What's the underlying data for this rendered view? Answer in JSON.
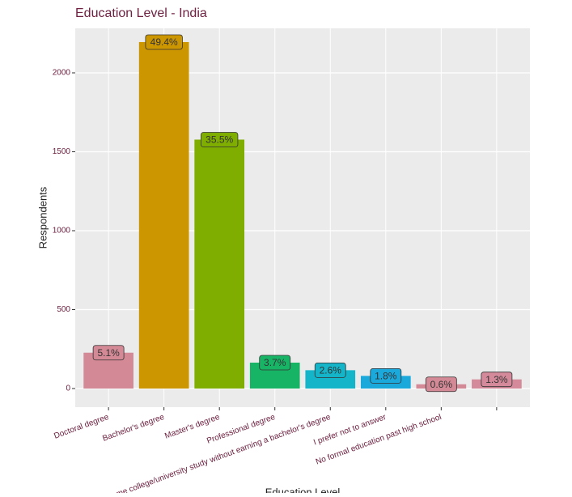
{
  "chart_data": {
    "type": "bar",
    "title": "Education Level - India",
    "x_label": "Education Level",
    "y_label": "Respondents",
    "categories": [
      "Doctoral degree",
      "Bachelor's degree",
      "Master's degree",
      "Professional degree",
      "Some college/university study without earning a bachelor's degree",
      "I prefer not to answer",
      "No formal education past high school",
      null
    ],
    "values": [
      227,
      2195,
      1577,
      164,
      116,
      80,
      27,
      58
    ],
    "value_labels": [
      "5.1%",
      "49.4%",
      "35.5%",
      "3.7%",
      "2.6%",
      "1.8%",
      "0.6%",
      "1.3%"
    ],
    "colors": [
      "#d48a96",
      "#cc9600",
      "#7fae00",
      "#18b466",
      "#14b5c9",
      "#1ba9dc",
      "#d48a96",
      "#d48a9a"
    ],
    "ylim": [
      -118,
      2282
    ],
    "yticks": [
      0,
      500,
      1000,
      1500,
      2000
    ],
    "grid": true
  }
}
